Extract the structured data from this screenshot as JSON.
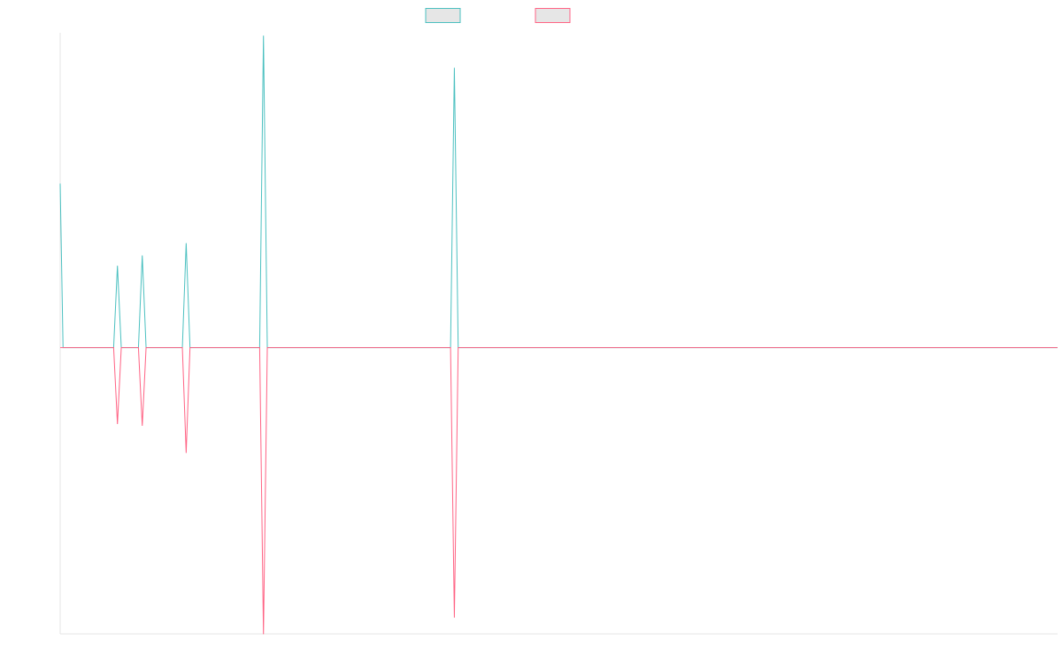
{
  "chart_data": {
    "type": "line",
    "title": "",
    "xlabel": "",
    "ylabel": "",
    "x_range": [
      0,
      1045
    ],
    "ylim": [
      -100,
      110
    ],
    "grid": false,
    "legend": "top-center",
    "x": [
      0,
      3,
      56,
      60,
      64,
      82,
      86,
      90,
      128,
      132,
      136,
      209,
      213,
      217,
      409,
      413,
      417,
      1045
    ],
    "series": [
      {
        "name": "",
        "color": "#4BC0C0",
        "values": [
          57.3,
          0,
          0,
          28.6,
          0,
          0,
          32.2,
          0,
          0,
          36.5,
          0,
          0,
          109,
          0,
          0,
          97.8,
          0,
          0
        ]
      },
      {
        "name": "",
        "color": "#FF6384",
        "values": [
          0,
          0,
          0,
          -26.7,
          0,
          0,
          -27.3,
          0,
          0,
          -36.8,
          0,
          0,
          -100.1,
          0,
          0,
          -94.3,
          0,
          0
        ]
      }
    ]
  }
}
